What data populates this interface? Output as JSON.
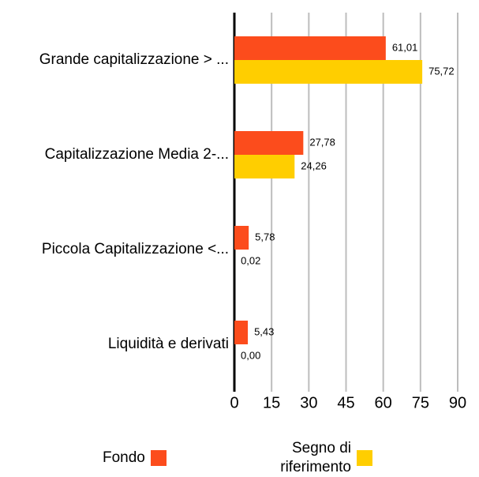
{
  "chart_data": {
    "type": "bar",
    "orientation": "horizontal",
    "categories": [
      "Grande capitalizzazione > ...",
      "Capitalizzazione Media 2-...",
      "Piccola Capitalizzazione <...",
      "Liquidità e derivati"
    ],
    "series": [
      {
        "name": "Fondo",
        "color": "#fc4c1c",
        "values": [
          61.01,
          27.78,
          5.78,
          5.43
        ],
        "value_labels": [
          "61,01",
          "27,78",
          "5,78",
          "5,43"
        ]
      },
      {
        "name": "Segno di riferimento",
        "color": "#ffce00",
        "values": [
          75.72,
          24.26,
          0.02,
          0.0
        ],
        "value_labels": [
          "75,72",
          "24,26",
          "0,02",
          "0,00"
        ]
      }
    ],
    "xlim": [
      0,
      90
    ],
    "xticks": [
      0,
      15,
      30,
      45,
      60,
      75,
      90
    ],
    "grid": true
  }
}
